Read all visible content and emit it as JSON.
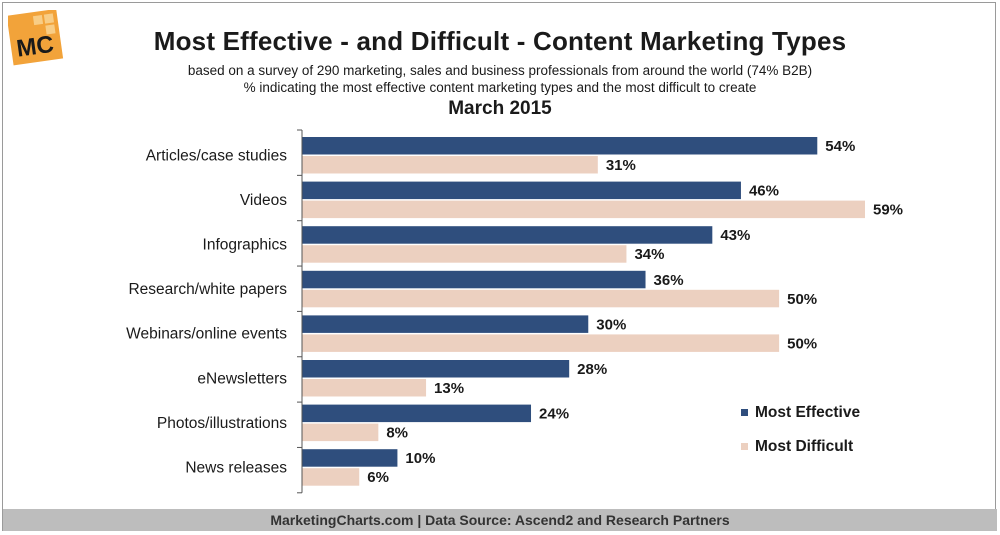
{
  "logo_text": "MC",
  "title": "Most Effective - and Difficult - Content Marketing Types",
  "subtitle_line1": "based on a survey of 290 marketing, sales and business professionals from around the world (74% B2B)",
  "subtitle_line2": "% indicating the most effective content marketing types and the most difficult to create",
  "date_label": "March 2015",
  "footer": "MarketingCharts.com | Data Source: Ascend2 and Research Partners",
  "colors": {
    "most_effective": "#2f4e7d",
    "most_difficult": "#ecd0c0",
    "logo": "#f2a33a"
  },
  "chart_data": {
    "type": "bar",
    "orientation": "horizontal",
    "categories": [
      "Articles/case studies",
      "Videos",
      "Infographics",
      "Research/white papers",
      "Webinars/online events",
      "eNewsletters",
      "Photos/illustrations",
      "News releases"
    ],
    "series": [
      {
        "name": "Most Effective",
        "values": [
          54,
          46,
          43,
          36,
          30,
          28,
          24,
          10
        ],
        "labels": [
          "54%",
          "46%",
          "43%",
          "36%",
          "30%",
          "28%",
          "24%",
          "10%"
        ]
      },
      {
        "name": "Most Difficult",
        "values": [
          31,
          59,
          34,
          50,
          50,
          13,
          8,
          6
        ],
        "labels": [
          "31%",
          "59%",
          "34%",
          "50%",
          "50%",
          "13%",
          "8%",
          "6%"
        ]
      }
    ],
    "xlim": [
      0,
      70
    ],
    "unit": "%",
    "grid": false,
    "legend_position": "bottom-right"
  }
}
